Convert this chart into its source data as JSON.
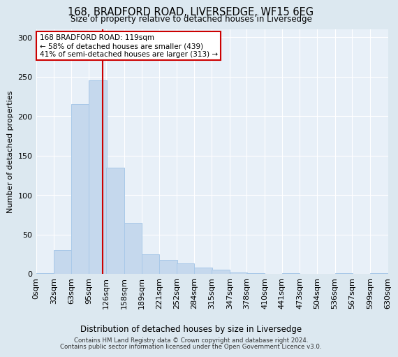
{
  "title_line1": "168, BRADFORD ROAD, LIVERSEDGE, WF15 6EG",
  "title_line2": "Size of property relative to detached houses in Liversedge",
  "xlabel": "Distribution of detached houses by size in Liversedge",
  "ylabel": "Number of detached properties",
  "bar_color": "#c5d8ed",
  "bar_edge_color": "#a8c8e8",
  "bg_color": "#e8f0f8",
  "grid_color": "#ffffff",
  "vline_color": "#cc0000",
  "vline_x": 119,
  "bin_width": 32,
  "bin_starts": [
    0,
    32,
    63,
    95,
    126,
    158,
    189,
    221,
    252,
    284,
    315,
    347,
    378,
    410,
    441,
    473,
    504,
    536,
    567,
    599
  ],
  "counts": [
    1,
    30,
    215,
    245,
    135,
    65,
    25,
    18,
    13,
    8,
    5,
    2,
    1,
    0,
    1,
    0,
    0,
    1,
    0,
    1
  ],
  "tick_labels": [
    "0sqm",
    "32sqm",
    "63sqm",
    "95sqm",
    "126sqm",
    "158sqm",
    "189sqm",
    "221sqm",
    "252sqm",
    "284sqm",
    "315sqm",
    "347sqm",
    "378sqm",
    "410sqm",
    "441sqm",
    "473sqm",
    "504sqm",
    "536sqm",
    "567sqm",
    "599sqm",
    "630sqm"
  ],
  "annotation_text": "168 BRADFORD ROAD: 119sqm\n← 58% of detached houses are smaller (439)\n41% of semi-detached houses are larger (313) →",
  "annotation_box_color": "#ffffff",
  "annotation_border_color": "#cc0000",
  "ylim": [
    0,
    310
  ],
  "yticks": [
    0,
    50,
    100,
    150,
    200,
    250,
    300
  ],
  "tick_label_size": 7,
  "footer_line1": "Contains HM Land Registry data © Crown copyright and database right 2024.",
  "footer_line2": "Contains public sector information licensed under the Open Government Licence v3.0."
}
